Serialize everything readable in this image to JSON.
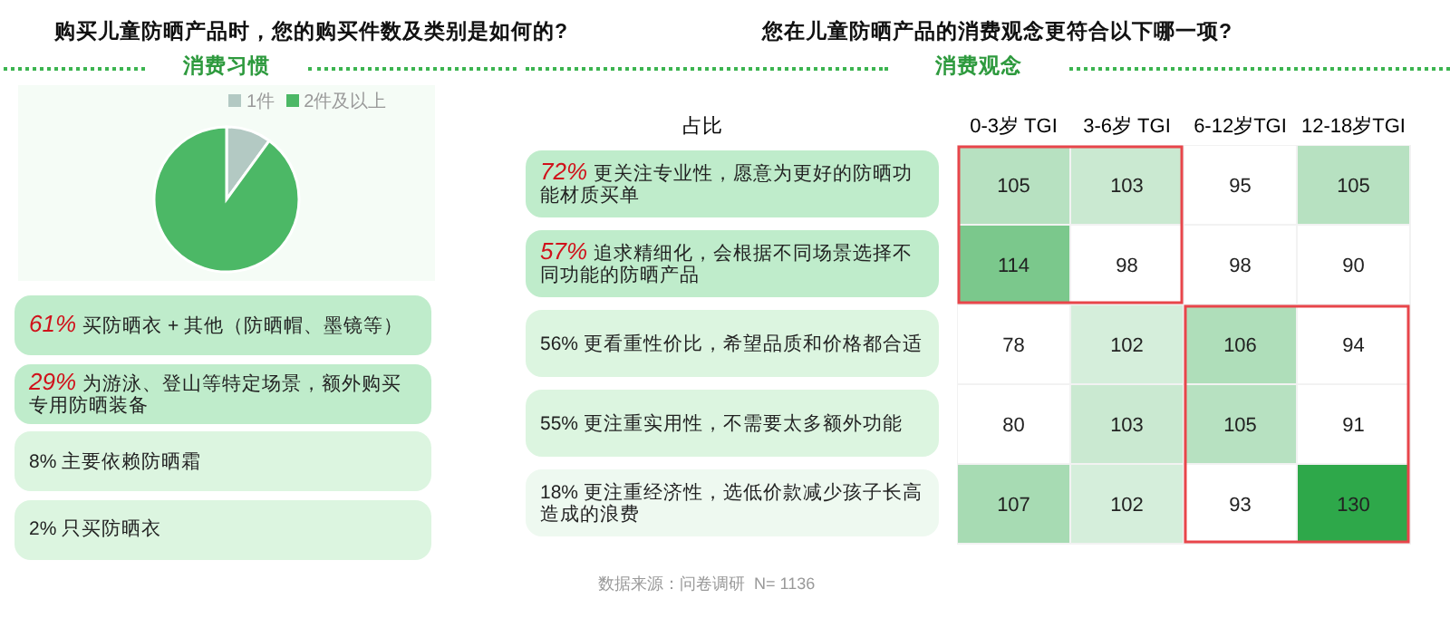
{
  "chart_data": [
    {
      "type": "pie",
      "title": "购买儿童防晒产品时，您的购买件数及类别是如何的?",
      "subtitle": "消费习惯",
      "categories": [
        "1件",
        "2件及以上"
      ],
      "values": [
        10,
        90
      ],
      "colors": [
        "#b3c9c3",
        "#4cb866"
      ],
      "legend": "top",
      "annotations": [
        "61% 买防晒衣 + 其他（防晒帽、墨镜等）",
        "29% 为游泳、登山等特定场景，额外购买专用防晒装备",
        "8% 主要依赖防晒霜",
        "2% 只买防晒衣"
      ]
    },
    {
      "type": "heatmap",
      "title": "您在儿童防晒产品的消费观念更符合以下哪一项?",
      "subtitle": "消费观念",
      "ylabel": "占比",
      "categories": [
        "0-3岁 TGI",
        "3-6岁 TGI",
        "6-12岁TGI",
        "12-18岁TGI"
      ],
      "y_categories": [
        "72% 更关注专业性，愿意为更好的防晒功能材质买单",
        "57% 追求精细化，会根据不同场景选择不同功能的防晒产品",
        "56% 更看重性价比，希望品质和价格都合适",
        "55% 更注重实用性，不需要太多额外功能",
        "18% 更注重经济性，选低价款减少孩子长高造成的浪费"
      ],
      "cells": [
        [
          105,
          103,
          95,
          105
        ],
        [
          114,
          98,
          98,
          90
        ],
        [
          78,
          102,
          106,
          94
        ],
        [
          80,
          103,
          105,
          91
        ],
        [
          107,
          102,
          93,
          130
        ]
      ],
      "data_labels": true,
      "annotations": [
        "数据来源：问卷调研  N= 1136"
      ]
    }
  ]
}
